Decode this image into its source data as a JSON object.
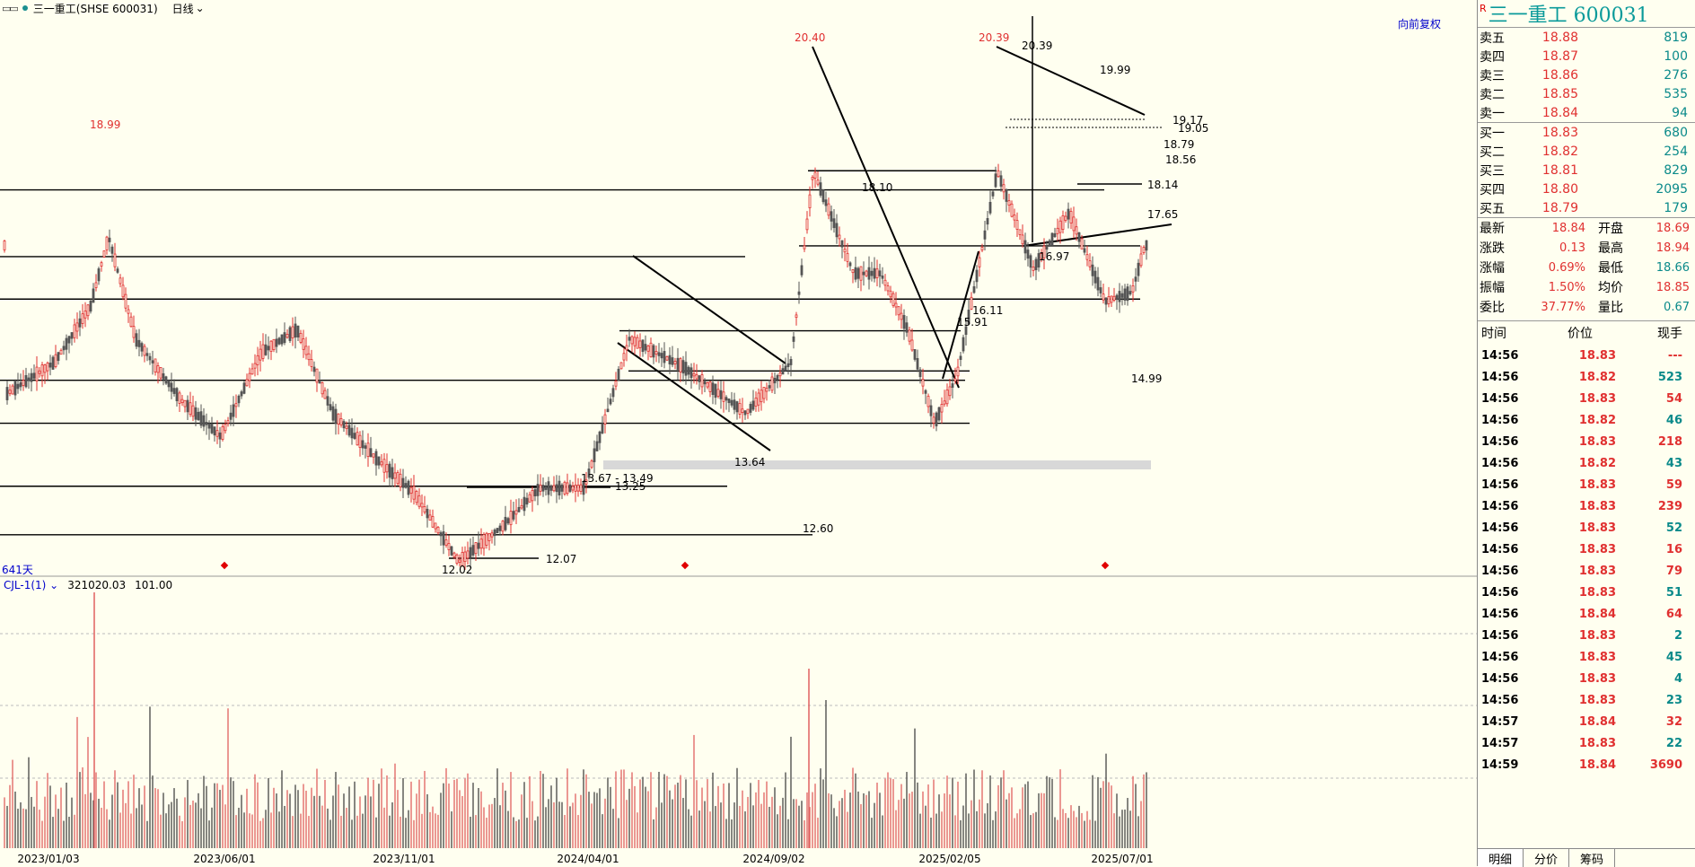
{
  "toolbar": {
    "stock_label": "三一重工(SHSE 600031)",
    "period": "日线"
  },
  "restore_label": "向前复权",
  "days_label": "641天",
  "indicator": {
    "name": "CJL-1(1)",
    "value1": "321020.03",
    "value2": "101.00"
  },
  "chart_data": {
    "type": "candlestick",
    "x_ticks": [
      "2023/01/03",
      "2023/06/01",
      "2023/11/01",
      "2024/04/01",
      "2024/09/02",
      "2025/02/05",
      "2025/07/01"
    ],
    "price_marks": [
      {
        "label": "18.99",
        "price": 18.99,
        "color": "#e03030"
      },
      {
        "label": "20.40",
        "price": 20.4,
        "color": "#e03030"
      },
      {
        "label": "20.39",
        "price": 20.39,
        "color": "#e03030"
      },
      {
        "label": "12.02",
        "price": 12.02,
        "color": "#000000"
      }
    ],
    "level_labels": [
      "20.39",
      "19.99",
      "19.17",
      "19.05",
      "18.79",
      "18.56",
      "18.14",
      "18.10",
      "17.65",
      "16.97",
      "16.11",
      "15.91",
      "14.99",
      "13.64",
      "13.67 - 13.49",
      "13.25",
      "12.60",
      "12.07"
    ],
    "series_note": "daily candles and volume of 三一重工 600031"
  },
  "quote": {
    "r_flag": "R",
    "title": "三一重工 600031",
    "asks": [
      {
        "label": "卖五",
        "price": "18.88",
        "vol": "819"
      },
      {
        "label": "卖四",
        "price": "18.87",
        "vol": "100"
      },
      {
        "label": "卖三",
        "price": "18.86",
        "vol": "276"
      },
      {
        "label": "卖二",
        "price": "18.85",
        "vol": "535"
      },
      {
        "label": "卖一",
        "price": "18.84",
        "vol": "94"
      }
    ],
    "bids": [
      {
        "label": "买一",
        "price": "18.83",
        "vol": "680"
      },
      {
        "label": "买二",
        "price": "18.82",
        "vol": "254"
      },
      {
        "label": "买三",
        "price": "18.81",
        "vol": "829"
      },
      {
        "label": "买四",
        "price": "18.80",
        "vol": "2095"
      },
      {
        "label": "买五",
        "price": "18.79",
        "vol": "179"
      }
    ],
    "stats": [
      {
        "l1": "最新",
        "v1": "18.84",
        "l2": "开盘",
        "v2": "18.69",
        "c2": "red"
      },
      {
        "l1": "涨跌",
        "v1": "0.13",
        "l2": "最高",
        "v2": "18.94",
        "c2": "red"
      },
      {
        "l1": "涨幅",
        "v1": "0.69%",
        "l2": "最低",
        "v2": "18.66",
        "c2": "green"
      },
      {
        "l1": "振幅",
        "v1": "1.50%",
        "l2": "均价",
        "v2": "18.85",
        "c2": "red"
      },
      {
        "l1": "委比",
        "v1": "37.77%",
        "l2": "量比",
        "v2": "0.67",
        "c2": "green"
      }
    ],
    "trades_header": {
      "time": "时间",
      "price": "价位",
      "vol": "现手"
    },
    "trades": [
      {
        "time": "14:56",
        "price": "18.83",
        "vol": "---",
        "c": "red"
      },
      {
        "time": "14:56",
        "price": "18.82",
        "vol": "523",
        "c": "green"
      },
      {
        "time": "14:56",
        "price": "18.83",
        "vol": "54",
        "c": "red"
      },
      {
        "time": "14:56",
        "price": "18.82",
        "vol": "46",
        "c": "green"
      },
      {
        "time": "14:56",
        "price": "18.83",
        "vol": "218",
        "c": "red"
      },
      {
        "time": "14:56",
        "price": "18.82",
        "vol": "43",
        "c": "green"
      },
      {
        "time": "14:56",
        "price": "18.83",
        "vol": "59",
        "c": "red"
      },
      {
        "time": "14:56",
        "price": "18.83",
        "vol": "239",
        "c": "red"
      },
      {
        "time": "14:56",
        "price": "18.83",
        "vol": "52",
        "c": "green"
      },
      {
        "time": "14:56",
        "price": "18.83",
        "vol": "16",
        "c": "red"
      },
      {
        "time": "14:56",
        "price": "18.83",
        "vol": "79",
        "c": "red"
      },
      {
        "time": "14:56",
        "price": "18.83",
        "vol": "51",
        "c": "green"
      },
      {
        "time": "14:56",
        "price": "18.84",
        "vol": "64",
        "c": "red"
      },
      {
        "time": "14:56",
        "price": "18.83",
        "vol": "2",
        "c": "green"
      },
      {
        "time": "14:56",
        "price": "18.83",
        "vol": "45",
        "c": "green"
      },
      {
        "time": "14:56",
        "price": "18.83",
        "vol": "4",
        "c": "green"
      },
      {
        "time": "14:56",
        "price": "18.83",
        "vol": "23",
        "c": "green"
      },
      {
        "time": "14:57",
        "price": "18.84",
        "vol": "32",
        "c": "red"
      },
      {
        "time": "14:57",
        "price": "18.83",
        "vol": "22",
        "c": "green"
      },
      {
        "time": "14:59",
        "price": "18.84",
        "vol": "3690",
        "c": "red"
      }
    ],
    "tabs": [
      "明细",
      "分价",
      "筹码"
    ]
  }
}
